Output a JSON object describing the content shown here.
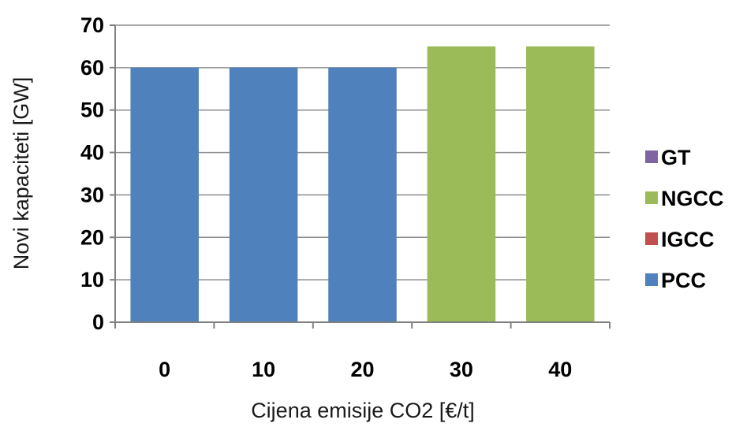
{
  "chart_data": {
    "type": "bar",
    "categories": [
      "0",
      "10",
      "20",
      "30",
      "40"
    ],
    "series": [
      {
        "name": "PCC",
        "color": "#4f81bd",
        "values": [
          60,
          60,
          60,
          0,
          0
        ]
      },
      {
        "name": "IGCC",
        "color": "#c0504d",
        "values": [
          0,
          0,
          0,
          0,
          0
        ]
      },
      {
        "name": "NGCC",
        "color": "#9bbb59",
        "values": [
          0,
          0,
          0,
          65,
          65
        ]
      },
      {
        "name": "GT",
        "color": "#8064a2",
        "values": [
          0,
          0,
          0,
          0,
          0
        ]
      }
    ],
    "stacked": true,
    "xlabel": "Cijena emisije CO2 [€/t]",
    "ylabel": "Novi kapaciteti [GW]",
    "ylim": [
      0,
      70
    ],
    "yticks": [
      "0",
      "10",
      "20",
      "30",
      "40",
      "50",
      "60",
      "70"
    ],
    "grid": true,
    "legend_position": "right",
    "legend_order": [
      "GT",
      "NGCC",
      "IGCC",
      "PCC"
    ]
  }
}
